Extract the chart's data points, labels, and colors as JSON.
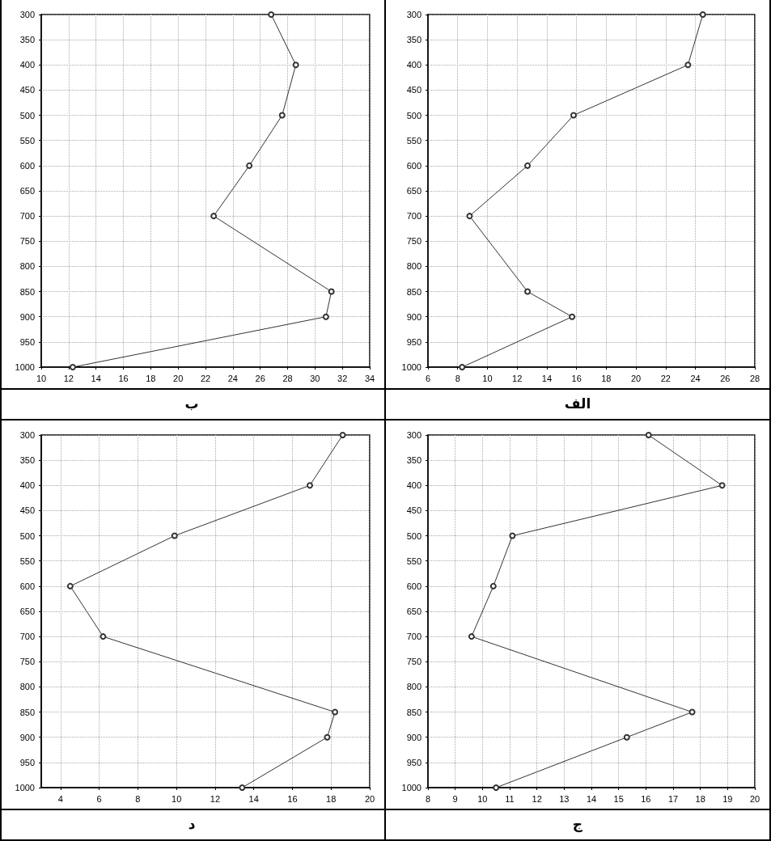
{
  "chart_data": [
    {
      "type": "line",
      "title": "الف",
      "x": [
        24.5,
        23.5,
        15.8,
        12.7,
        8.8,
        12.7,
        15.7,
        8.3
      ],
      "values": [
        300,
        400,
        500,
        600,
        700,
        850,
        900,
        1000
      ],
      "color": "#333333",
      "xlim": [
        6,
        28
      ],
      "xticks": [
        6,
        8,
        10,
        12,
        14,
        16,
        18,
        20,
        22,
        24,
        26,
        28
      ],
      "ylim": [
        1000,
        300
      ],
      "yticks": [
        300,
        350,
        400,
        450,
        500,
        550,
        600,
        650,
        700,
        750,
        800,
        850,
        900,
        950,
        1000
      ],
      "grid": true,
      "marker": "circle",
      "line_style": "solid"
    },
    {
      "type": "line",
      "title": "ب",
      "x": [
        26.8,
        28.6,
        27.6,
        25.2,
        22.6,
        31.2,
        30.8,
        12.3
      ],
      "values": [
        300,
        400,
        500,
        600,
        700,
        850,
        900,
        1000
      ],
      "color": "#333333",
      "xlim": [
        10,
        34
      ],
      "xticks": [
        10,
        12,
        14,
        16,
        18,
        20,
        22,
        24,
        26,
        28,
        30,
        32,
        34
      ],
      "ylim": [
        1000,
        300
      ],
      "yticks": [
        300,
        350,
        400,
        450,
        500,
        550,
        600,
        650,
        700,
        750,
        800,
        850,
        900,
        950,
        1000
      ],
      "grid": true,
      "marker": "circle",
      "line_style": "solid"
    },
    {
      "type": "line",
      "title": "ج",
      "x": [
        16.1,
        18.8,
        11.1,
        10.4,
        9.6,
        17.7,
        15.3,
        10.5
      ],
      "values": [
        300,
        400,
        500,
        600,
        700,
        850,
        900,
        1000
      ],
      "color": "#333333",
      "xlim": [
        8,
        20
      ],
      "xticks": [
        8,
        9,
        10,
        11,
        12,
        13,
        14,
        15,
        16,
        17,
        18,
        19,
        20
      ],
      "ylim": [
        1000,
        300
      ],
      "yticks": [
        300,
        350,
        400,
        450,
        500,
        550,
        600,
        650,
        700,
        750,
        800,
        850,
        900,
        950,
        1000
      ],
      "grid": true,
      "marker": "circle",
      "line_style": "solid"
    },
    {
      "type": "line",
      "title": "د",
      "x": [
        18.6,
        16.9,
        9.9,
        4.5,
        6.2,
        18.2,
        17.8,
        13.4
      ],
      "values": [
        300,
        400,
        500,
        600,
        700,
        850,
        900,
        1000
      ],
      "color": "#333333",
      "xlim": [
        3,
        20
      ],
      "xticks": [
        4,
        6,
        8,
        10,
        12,
        14,
        16,
        18,
        20
      ],
      "ylim": [
        1000,
        300
      ],
      "yticks": [
        300,
        350,
        400,
        450,
        500,
        550,
        600,
        650,
        700,
        750,
        800,
        850,
        900,
        950,
        1000
      ],
      "grid": true,
      "marker": "circle",
      "line_style": "solid"
    }
  ]
}
